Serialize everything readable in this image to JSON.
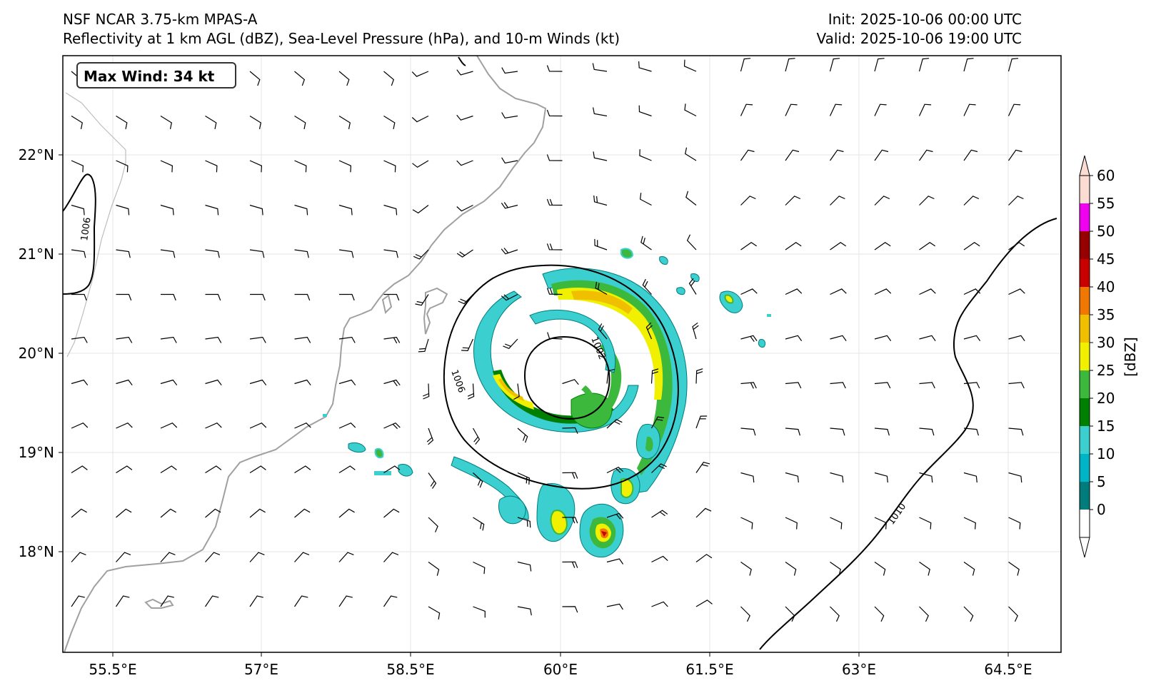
{
  "header": {
    "model": "NSF NCAR 3.75-km MPAS-A",
    "description": "Reflectivity at 1 km AGL (dBZ), Sea-Level Pressure (hPa), and 10-m Winds (kt)",
    "init": "Init: 2025-10-06 00:00 UTC",
    "valid": "Valid: 2025-10-06 19:00 UTC"
  },
  "badge": {
    "text": "Max Wind: 34 kt"
  },
  "axes": {
    "x_ticks": [
      "55.5°E",
      "57°E",
      "58.5°E",
      "60°E",
      "61.5°E",
      "63°E",
      "64.5°E"
    ],
    "y_ticks": [
      "22°N",
      "21°N",
      "20°N",
      "19°N",
      "18°N"
    ]
  },
  "contours": {
    "labels": [
      "1006",
      "1002",
      "1006",
      "1010"
    ]
  },
  "colorbar": {
    "label": "[dBZ]",
    "ticks": [
      "0",
      "5",
      "10",
      "15",
      "20",
      "25",
      "30",
      "35",
      "40",
      "45",
      "50",
      "55",
      "60"
    ],
    "colors": [
      "#ffffff",
      "#007c7c",
      "#00b4c8",
      "#3ccfcf",
      "#008000",
      "#3cb83c",
      "#f0f000",
      "#f0c000",
      "#f07800",
      "#c80000",
      "#960000",
      "#f000f0",
      "#fadcd2"
    ]
  },
  "colors": {
    "coastline": "#a0a0a0",
    "isobar": "#000000",
    "grid": "#e6e6e6"
  }
}
